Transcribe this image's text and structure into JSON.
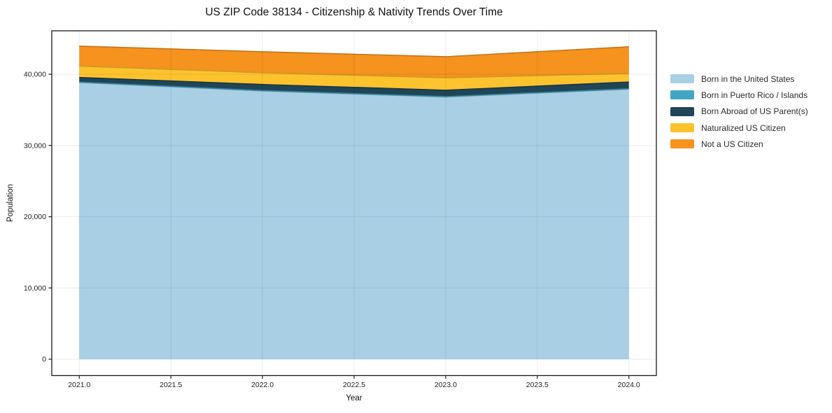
{
  "title": "US ZIP Code 38134 - Citizenship & Nativity Trends Over Time",
  "chart_data": {
    "type": "area",
    "stacked": true,
    "title": "US ZIP Code 38134 - Citizenship & Nativity Trends Over Time",
    "xlabel": "Year",
    "ylabel": "Population",
    "x": [
      2021,
      2022,
      2023,
      2024
    ],
    "series": [
      {
        "name": "Born in the United States",
        "color": "#a9cfe5",
        "values": [
          38850,
          37650,
          36800,
          37900
        ]
      },
      {
        "name": "Born in Puerto Rico / Islands",
        "color": "#41a6c4",
        "values": [
          50,
          60,
          60,
          60
        ]
      },
      {
        "name": "Born Abroad of US Parent(s)",
        "color": "#1f4556",
        "values": [
          650,
          850,
          900,
          950
        ]
      },
      {
        "name": "Naturalized US Citizen",
        "color": "#fdc32e",
        "values": [
          1600,
          1650,
          1750,
          1200
        ]
      },
      {
        "name": "Not a US Citizen",
        "color": "#f6921e",
        "values": [
          2800,
          2950,
          2950,
          3750
        ]
      }
    ],
    "stack_totals": [
      43950,
      43160,
      42460,
      43860
    ],
    "xticks": [
      2021.0,
      2021.5,
      2022.0,
      2022.5,
      2023.0,
      2023.5,
      2024.0
    ],
    "xtick_labels": [
      "2021.0",
      "2021.5",
      "2022.0",
      "2022.5",
      "2023.0",
      "2023.5",
      "2024.0"
    ],
    "yticks": [
      0,
      10000,
      20000,
      30000,
      40000
    ],
    "ytick_labels": [
      "0",
      "10,000",
      "20,000",
      "30,000",
      "40,000"
    ],
    "xlim": [
      2020.85,
      2024.15
    ],
    "ylim": [
      -2300,
      46100
    ],
    "grid": true,
    "legend_position": "right"
  },
  "colors": {
    "background": "#ffffff",
    "axis": "#1a1a1a",
    "grid": "#ebebeb",
    "tick_label": "#222222",
    "legend_text": "#2b2b2b"
  }
}
